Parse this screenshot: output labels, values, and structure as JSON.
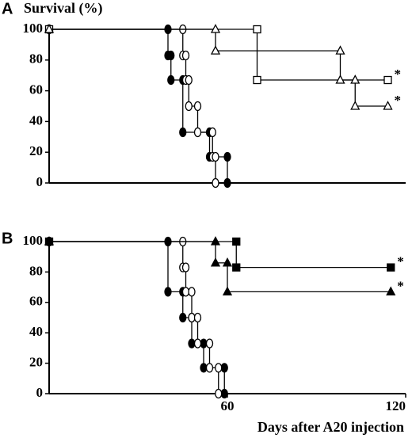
{
  "chart_data": [
    {
      "type": "step",
      "panel_label": "A",
      "y_label": "Survival (%)",
      "xlim": [
        0,
        120
      ],
      "ylim": [
        0,
        100
      ],
      "yticks": [
        0,
        20,
        40,
        60,
        80,
        100
      ],
      "series": [
        {
          "marker": "circle",
          "fill": "#000000",
          "x": [
            0,
            40,
            40,
            41,
            41,
            45,
            45,
            54,
            54,
            60,
            60
          ],
          "values": [
            100,
            100,
            83,
            83,
            67,
            67,
            33,
            33,
            17,
            17,
            0
          ]
        },
        {
          "marker": "circle",
          "fill": "#ffffff",
          "x": [
            0,
            45,
            45,
            46,
            46,
            47,
            47,
            50,
            50,
            55,
            55,
            56,
            56
          ],
          "values": [
            100,
            100,
            83,
            83,
            67,
            67,
            50,
            50,
            33,
            33,
            17,
            17,
            0
          ]
        },
        {
          "marker": "square",
          "fill": "#ffffff",
          "end_label": "*",
          "x": [
            0,
            70,
            70,
            114
          ],
          "values": [
            100,
            100,
            67,
            67
          ]
        },
        {
          "marker": "triangle",
          "fill": "#ffffff",
          "end_label": "*",
          "x": [
            0,
            56,
            56,
            98,
            98,
            103,
            103,
            114
          ],
          "values": [
            100,
            100,
            86,
            86,
            67,
            67,
            50,
            50
          ]
        }
      ]
    },
    {
      "type": "step",
      "panel_label": "B",
      "x_label": "Days after A20 injection",
      "xlim": [
        0,
        120
      ],
      "ylim": [
        0,
        100
      ],
      "yticks": [
        0,
        20,
        40,
        60,
        80,
        100
      ],
      "xticks": [
        60,
        120
      ],
      "series": [
        {
          "marker": "circle",
          "fill": "#000000",
          "x": [
            0,
            40,
            40,
            45,
            45,
            48,
            48,
            52,
            52,
            59,
            59
          ],
          "values": [
            100,
            100,
            67,
            67,
            50,
            50,
            33,
            33,
            17,
            17,
            0
          ]
        },
        {
          "marker": "circle",
          "fill": "#ffffff",
          "x": [
            0,
            45,
            45,
            46,
            46,
            48,
            48,
            50,
            50,
            54,
            54,
            57,
            57
          ],
          "values": [
            100,
            100,
            83,
            83,
            67,
            67,
            50,
            50,
            33,
            33,
            17,
            17,
            0
          ]
        },
        {
          "marker": "square",
          "fill": "#000000",
          "end_label": "*",
          "x": [
            0,
            63,
            63,
            115
          ],
          "values": [
            100,
            100,
            83,
            83
          ]
        },
        {
          "marker": "triangle",
          "fill": "#000000",
          "end_label": "*",
          "x": [
            0,
            56,
            56,
            60,
            60,
            115
          ],
          "values": [
            100,
            100,
            86,
            86,
            67,
            67
          ]
        }
      ]
    }
  ]
}
